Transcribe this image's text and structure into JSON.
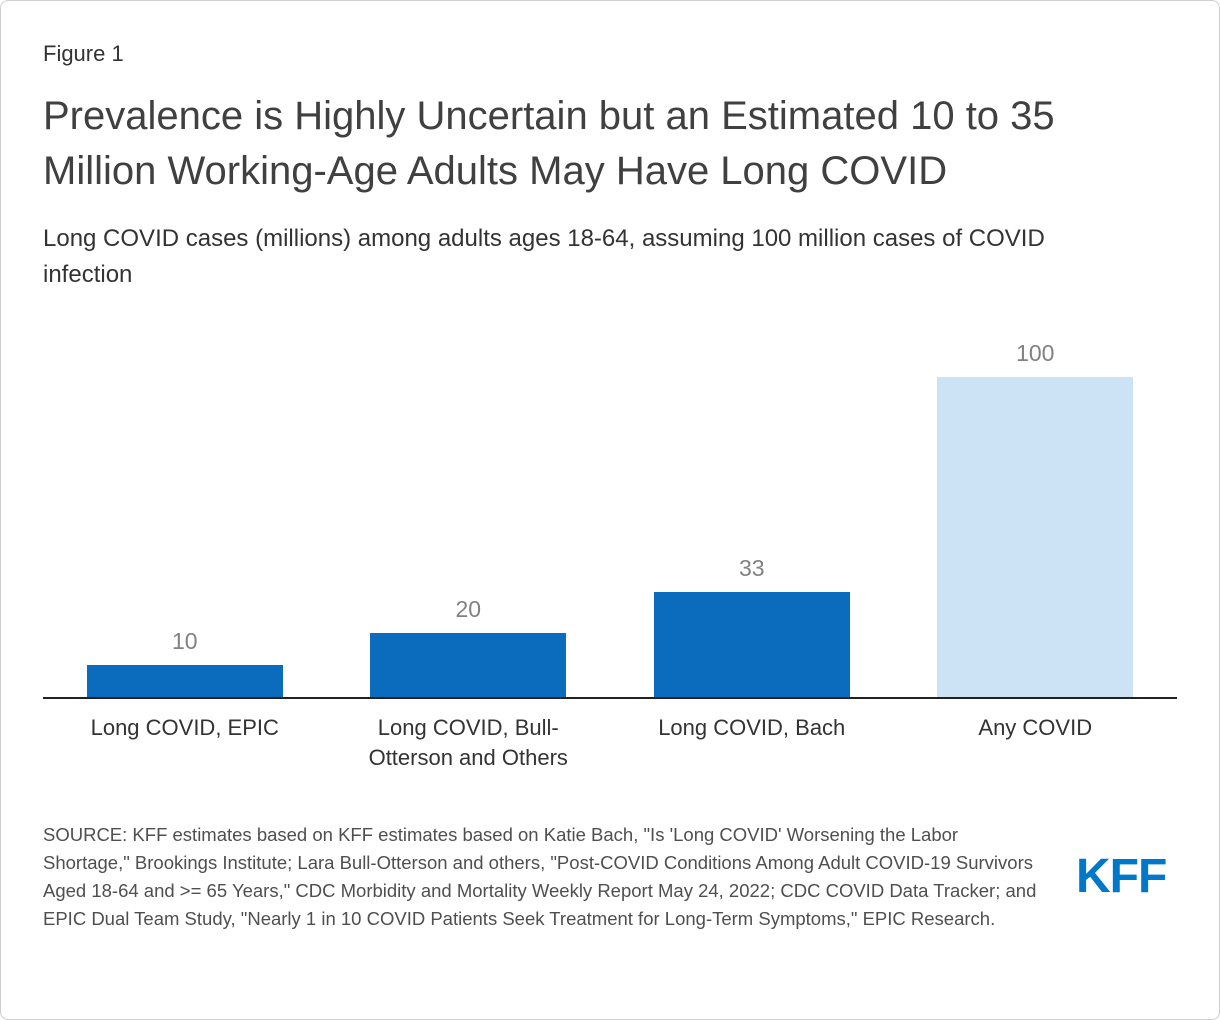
{
  "figure_label": "Figure 1",
  "title": "Prevalence is Highly Uncertain but an Estimated 10 to 35 Million Working-Age Adults May Have Long COVID",
  "subtitle": "Long COVID cases (millions) among adults ages 18-64, assuming 100 million cases of COVID infection",
  "chart_data": {
    "type": "bar",
    "categories": [
      "Long COVID, EPIC",
      "Long COVID, Bull-Otterson and Others",
      "Long COVID, Bach",
      "Any COVID"
    ],
    "values": [
      10,
      20,
      33,
      100
    ],
    "bar_colors": [
      "#0b6bbd",
      "#0b6bbd",
      "#0b6bbd",
      "#cce3f5"
    ],
    "value_label_color": "#818181",
    "title": "Prevalence is Highly Uncertain but an Estimated 10 to 35 Million Working-Age Adults May Have Long COVID",
    "xlabel": "",
    "ylabel": "Long COVID cases (millions)",
    "ylim": [
      0,
      100
    ],
    "grid": false,
    "legend": false,
    "data_labels": true
  },
  "source": "SOURCE: KFF estimates based on KFF estimates based on Katie Bach, \"Is 'Long COVID' Worsening the Labor Shortage,\" Brookings Institute; Lara Bull-Otterson and others, \"Post-COVID Conditions Among Adult COVID-19 Survivors Aged 18-64 and >= 65 Years,\" CDC Morbidity and Mortality Weekly Report May 24, 2022; CDC COVID Data Tracker; and EPIC Dual Team Study, \"Nearly 1 in 10 COVID Patients Seek Treatment for Long-Term Symptoms,\" EPIC Research.",
  "logo": "KFF",
  "colors": {
    "accent_blue": "#0b6bbd",
    "light_blue": "#cce3f5",
    "logo_blue": "#0077c8"
  }
}
